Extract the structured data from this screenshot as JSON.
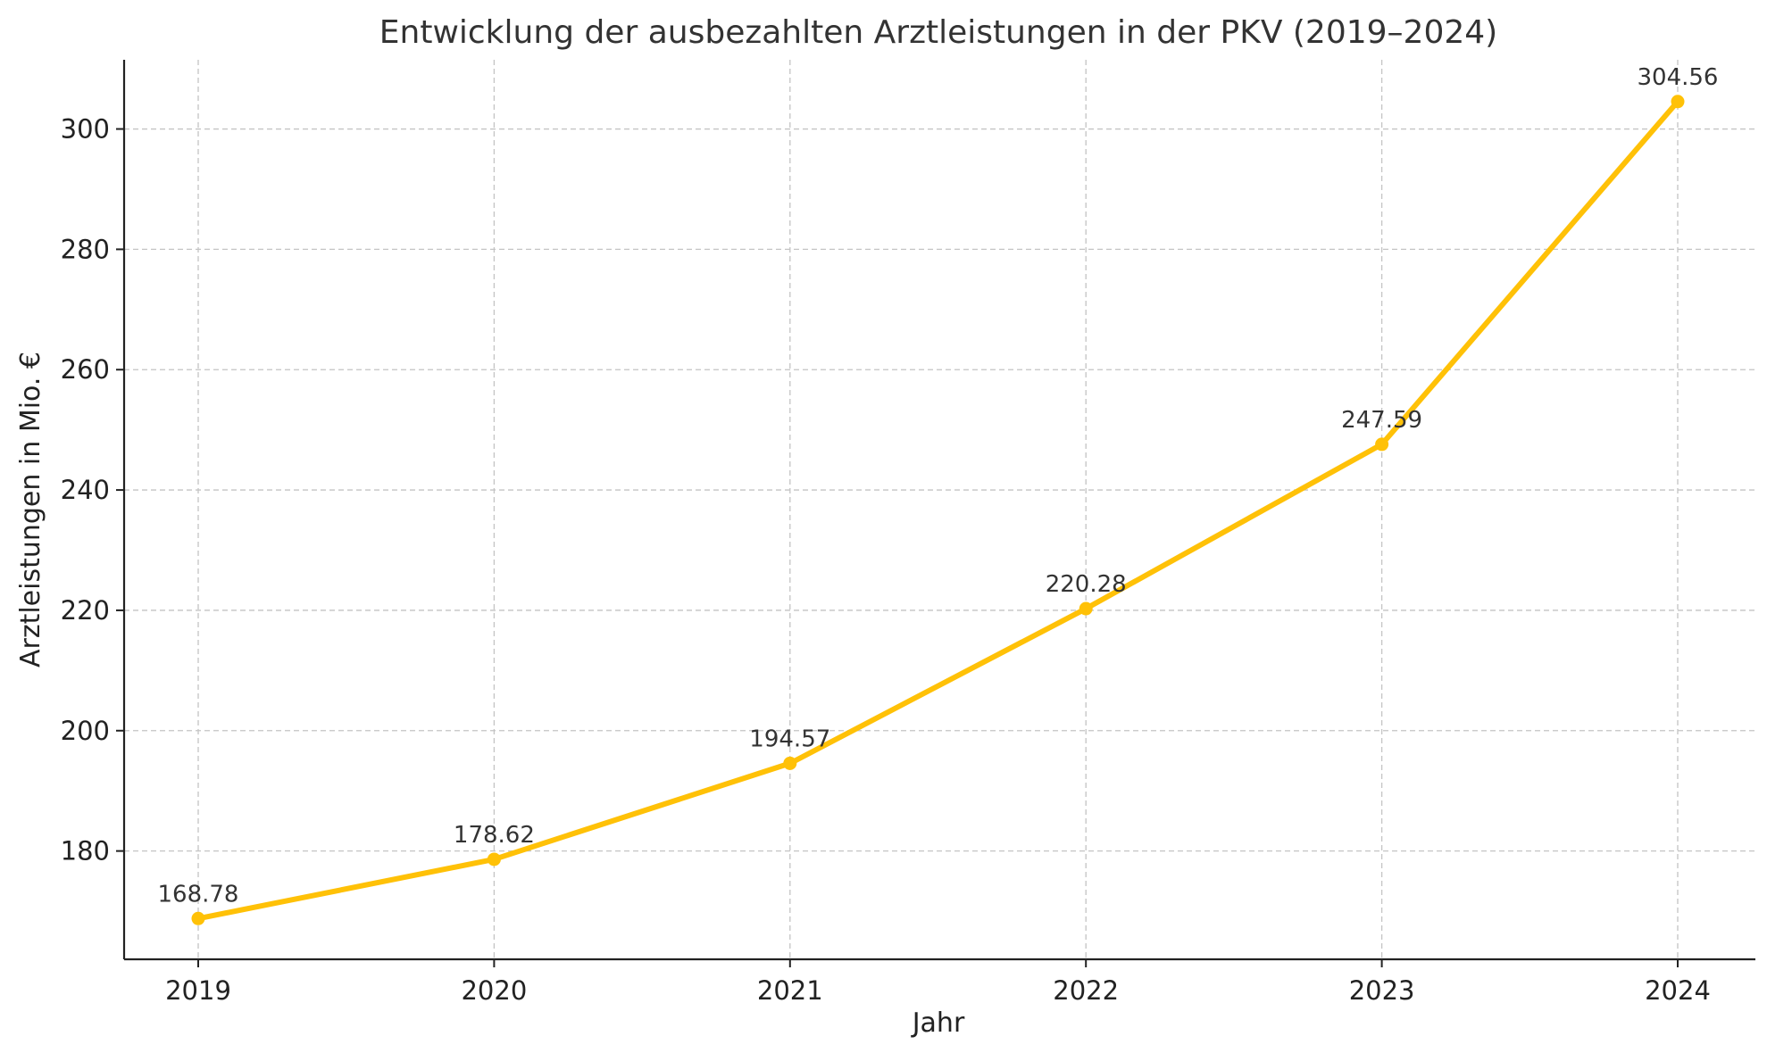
{
  "chart_data": {
    "type": "line",
    "title": "Entwicklung der ausbezahlten Arztleistungen in der PKV (2019–2024)",
    "xlabel": "Jahr",
    "ylabel": "Arztleistungen in Mio. €",
    "categories": [
      "2019",
      "2020",
      "2021",
      "2022",
      "2023",
      "2024"
    ],
    "series": [
      {
        "name": "Arztleistungen",
        "values": [
          168.78,
          178.62,
          194.57,
          220.28,
          247.59,
          304.56
        ],
        "labels": [
          "168.78",
          "178.62",
          "194.57",
          "220.28",
          "247.59",
          "304.56"
        ],
        "color": "#FFC107"
      }
    ],
    "yticks": [
      180,
      200,
      220,
      240,
      260,
      280,
      300
    ],
    "ytick_labels": [
      "180",
      "200",
      "220",
      "240",
      "260",
      "280",
      "300"
    ],
    "ylim": [
      162.0,
      311.5
    ],
    "grid": true,
    "marker": "circle"
  }
}
